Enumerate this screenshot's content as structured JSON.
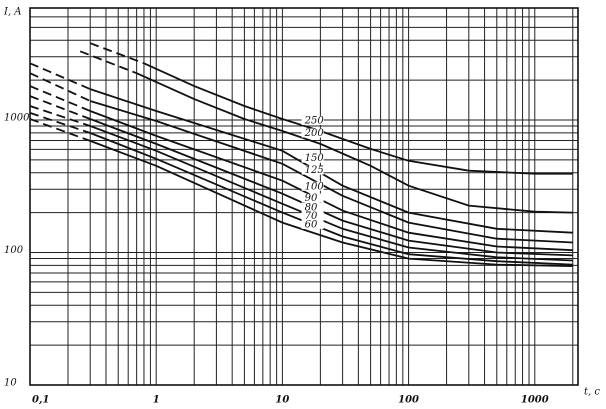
{
  "chart_data": {
    "type": "line",
    "x_label": "t, c",
    "y_label": "I, A",
    "x_log": true,
    "y_log": true,
    "grid": true,
    "minor_grid": true,
    "xlim": [
      0.1,
      2200
    ],
    "ylim": [
      10,
      7000
    ],
    "xticks": [
      {
        "value": 0.1,
        "label": "0,1"
      },
      1,
      10,
      100,
      1000
    ],
    "yticks": [
      10,
      100,
      1000
    ],
    "series": [
      {
        "name": "250",
        "color": "#111111",
        "dashed_x": [
          0.3,
          0.8
        ],
        "dashed_values": [
          3794,
          2680
        ],
        "x": [
          0.8,
          2,
          5,
          10,
          20,
          50,
          100,
          300,
          1000,
          2000
        ],
        "values": [
          2680,
          1802,
          1275,
          1018,
          826,
          605,
          492,
          414,
          393,
          393
        ]
      },
      {
        "name": "200",
        "color": "#111111",
        "dashed_x": [
          0.25,
          0.7
        ],
        "dashed_values": [
          3300,
          2256
        ],
        "x": [
          0.7,
          2,
          5,
          10,
          20,
          50,
          100,
          300,
          1000,
          2000
        ],
        "values": [
          2256,
          1438,
          1018,
          826,
          660,
          451,
          319,
          226,
          203,
          200
        ]
      },
      {
        "name": "150",
        "color": "#111111",
        "dashed_x": [
          0.1,
          0.3
        ],
        "dashed_values": [
          2680,
          1710
        ],
        "x": [
          0.3,
          1,
          10,
          30,
          100,
          500,
          2000
        ],
        "values": [
          1710,
          1169,
          585,
          319,
          200,
          151,
          141
        ]
      },
      {
        "name": "125",
        "color": "#111111",
        "dashed_x": [
          0.1,
          0.3
        ],
        "dashed_values": [
          2256,
          1390
        ],
        "x": [
          0.3,
          1,
          10,
          30,
          100,
          500,
          2000
        ],
        "values": [
          1390,
          983,
          467,
          268,
          168,
          127,
          119
        ]
      },
      {
        "name": "100",
        "color": "#111111",
        "dashed_x": [
          0.1,
          0.3
        ],
        "dashed_values": [
          1802,
          1169
        ],
        "x": [
          0.3,
          1,
          10,
          30,
          100,
          500,
          2000
        ],
        "values": [
          1169,
          759,
          348,
          207,
          141,
          111,
          104
        ]
      },
      {
        "name": "90",
        "color": "#111111",
        "dashed_x": [
          0.1,
          0.3
        ],
        "dashed_values": [
          1515,
          1018
        ],
        "x": [
          0.3,
          1,
          10,
          30,
          100,
          500,
          2000
        ],
        "values": [
          1018,
          660,
          278,
          174,
          123,
          100,
          95
        ]
      },
      {
        "name": "80",
        "color": "#111111",
        "dashed_x": [
          0.1,
          0.3
        ],
        "dashed_values": [
          1275,
          901
        ],
        "x": [
          0.3,
          1,
          10,
          30,
          100,
          500,
          2000
        ],
        "values": [
          901,
          585,
          233,
          151,
          109,
          92,
          87
        ]
      },
      {
        "name": "70",
        "color": "#111111",
        "dashed_x": [
          0.1,
          0.3
        ],
        "dashed_values": [
          1130,
          798
        ],
        "x": [
          0.3,
          1,
          10,
          30,
          100,
          500,
          2000
        ],
        "values": [
          798,
          509,
          200,
          132,
          97,
          86,
          81
        ]
      },
      {
        "name": "60",
        "color": "#111111",
        "dashed_x": [
          0.1,
          0.3
        ],
        "dashed_values": [
          1018,
          695
        ],
        "x": [
          0.3,
          1,
          10,
          30,
          100,
          500,
          2000
        ],
        "values": [
          695,
          451,
          168,
          119,
          90,
          81,
          79
        ]
      }
    ]
  }
}
